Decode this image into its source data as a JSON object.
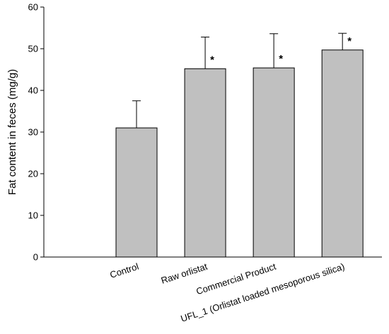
{
  "chart_data": {
    "type": "bar",
    "title": "",
    "xlabel": "",
    "ylabel": "Fat content in feces (mg/g)",
    "ylim": [
      0,
      60
    ],
    "yticks": [
      0,
      10,
      20,
      30,
      40,
      50,
      60
    ],
    "grid": false,
    "categories": [
      "Control",
      "Raw orlistat",
      "Commercial Product",
      "UFL_1 (Orlistat loaded mesoporous silica)"
    ],
    "values": [
      31.0,
      45.2,
      45.4,
      49.7
    ],
    "error_plus": [
      6.5,
      7.6,
      8.2,
      4.0
    ],
    "significance": [
      "",
      "*",
      "*",
      "*"
    ],
    "colors": {
      "bar_fill": "#c0c0c0",
      "bar_stroke": "#000000"
    }
  }
}
